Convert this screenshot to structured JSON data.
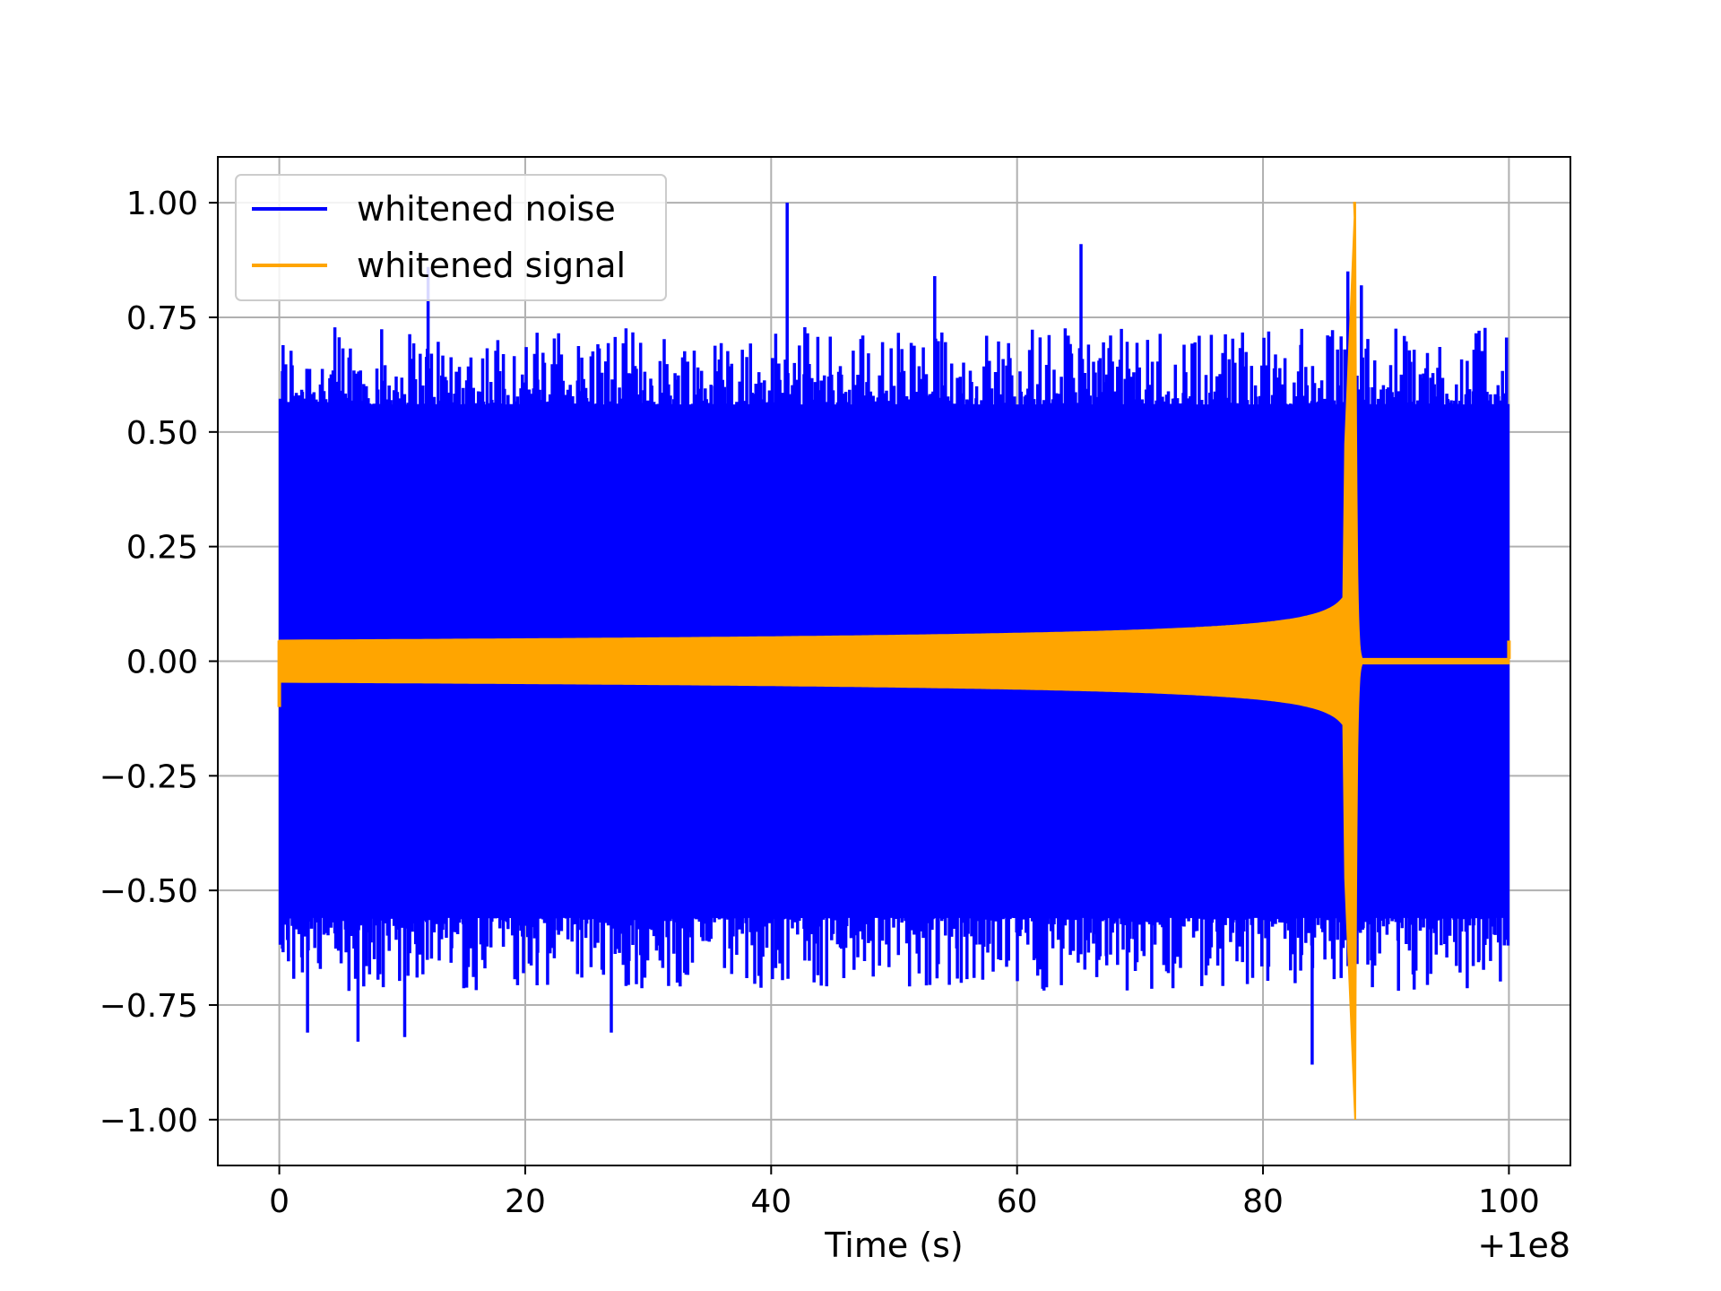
{
  "chart_data": {
    "type": "line",
    "title": "",
    "xlabel": "Time (s)",
    "ylabel": "",
    "x_offset_label": "+1e8",
    "xlim": [
      -5,
      105
    ],
    "ylim": [
      -1.1,
      1.1
    ],
    "xticks": [
      0,
      20,
      40,
      60,
      80,
      100
    ],
    "xtick_labels": [
      "0",
      "20",
      "40",
      "60",
      "80",
      "100"
    ],
    "yticks": [
      1.0,
      0.75,
      0.5,
      0.25,
      0.0,
      -0.25,
      -0.5,
      -0.75,
      -1.0
    ],
    "ytick_labels": [
      "1.00",
      "0.75",
      "0.50",
      "0.25",
      "0.00",
      "−0.25",
      "−0.50",
      "−0.75",
      "−1.00"
    ],
    "grid": true,
    "legend_position": "top-left",
    "series": [
      {
        "name": "whitened noise",
        "color": "#0000ff",
        "x_range": [
          0,
          100
        ],
        "band": {
          "upper": 0.55,
          "lower": -0.55
        },
        "peaks": [
          {
            "x": 41.3,
            "y": 1.0
          },
          {
            "x": 65.2,
            "y": 0.91
          },
          {
            "x": 12.1,
            "y": 0.86
          },
          {
            "x": 86.9,
            "y": 0.85
          },
          {
            "x": 53.3,
            "y": 0.84
          },
          {
            "x": 88.0,
            "y": 0.82
          },
          {
            "x": 84.0,
            "y": -0.88
          },
          {
            "x": 6.4,
            "y": -0.83
          },
          {
            "x": 10.2,
            "y": -0.82
          },
          {
            "x": 27.0,
            "y": -0.81
          },
          {
            "x": 2.3,
            "y": -0.81
          }
        ]
      },
      {
        "name": "whitened signal",
        "color": "#ffa500",
        "x_range": [
          0,
          100
        ],
        "envelope_start": 0.045,
        "merger_x": 87.5,
        "peak": {
          "x": 87.4,
          "y": 1.0
        },
        "trough": {
          "x": 87.5,
          "y": -1.0
        },
        "ringdown_end_x": 88.2,
        "post_merger_level": 0.005
      }
    ]
  }
}
